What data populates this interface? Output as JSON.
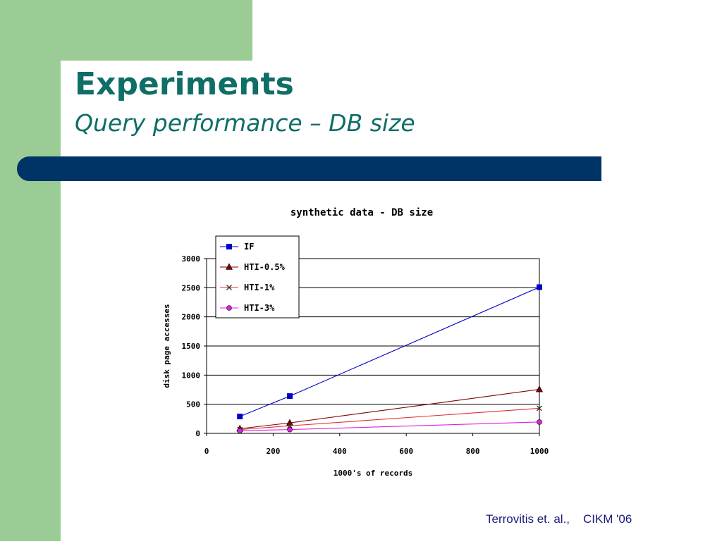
{
  "slide": {
    "title": "Experiments",
    "subtitle": "Query performance – DB size",
    "footer_authors": "Terrovitis et. al.,",
    "footer_venue": "CIKM '06"
  },
  "colors": {
    "deco_green": "#9ccc96",
    "title_teal": "#0f6e66",
    "bar_navy": "#003366"
  },
  "chart_data": {
    "type": "line",
    "title": "synthetic data - DB size",
    "xlabel": "1000's of records",
    "ylabel": "disk page accesses",
    "xlim": [
      0,
      1000
    ],
    "ylim": [
      0,
      3000
    ],
    "xticks": [
      0,
      200,
      400,
      600,
      800,
      1000
    ],
    "yticks": [
      0,
      500,
      1000,
      1500,
      2000,
      2500,
      3000
    ],
    "grid": "horizontal",
    "legend_position": "top-left",
    "series": [
      {
        "name": "IF",
        "color": "#0000cc",
        "marker": "square",
        "x": [
          100,
          250,
          1000
        ],
        "values": [
          290,
          640,
          2510
        ]
      },
      {
        "name": "HTI-0.5%",
        "color": "#800000",
        "marker": "triangle",
        "x": [
          100,
          250,
          1000
        ],
        "values": [
          80,
          180,
          755
        ]
      },
      {
        "name": "HTI-1%",
        "color": "#e03030",
        "marker": "x",
        "x": [
          100,
          250,
          1000
        ],
        "values": [
          65,
          130,
          430
        ]
      },
      {
        "name": "HTI-3%",
        "color": "#e020e0",
        "marker": "circle",
        "x": [
          100,
          250,
          1000
        ],
        "values": [
          45,
          65,
          195
        ]
      }
    ]
  }
}
